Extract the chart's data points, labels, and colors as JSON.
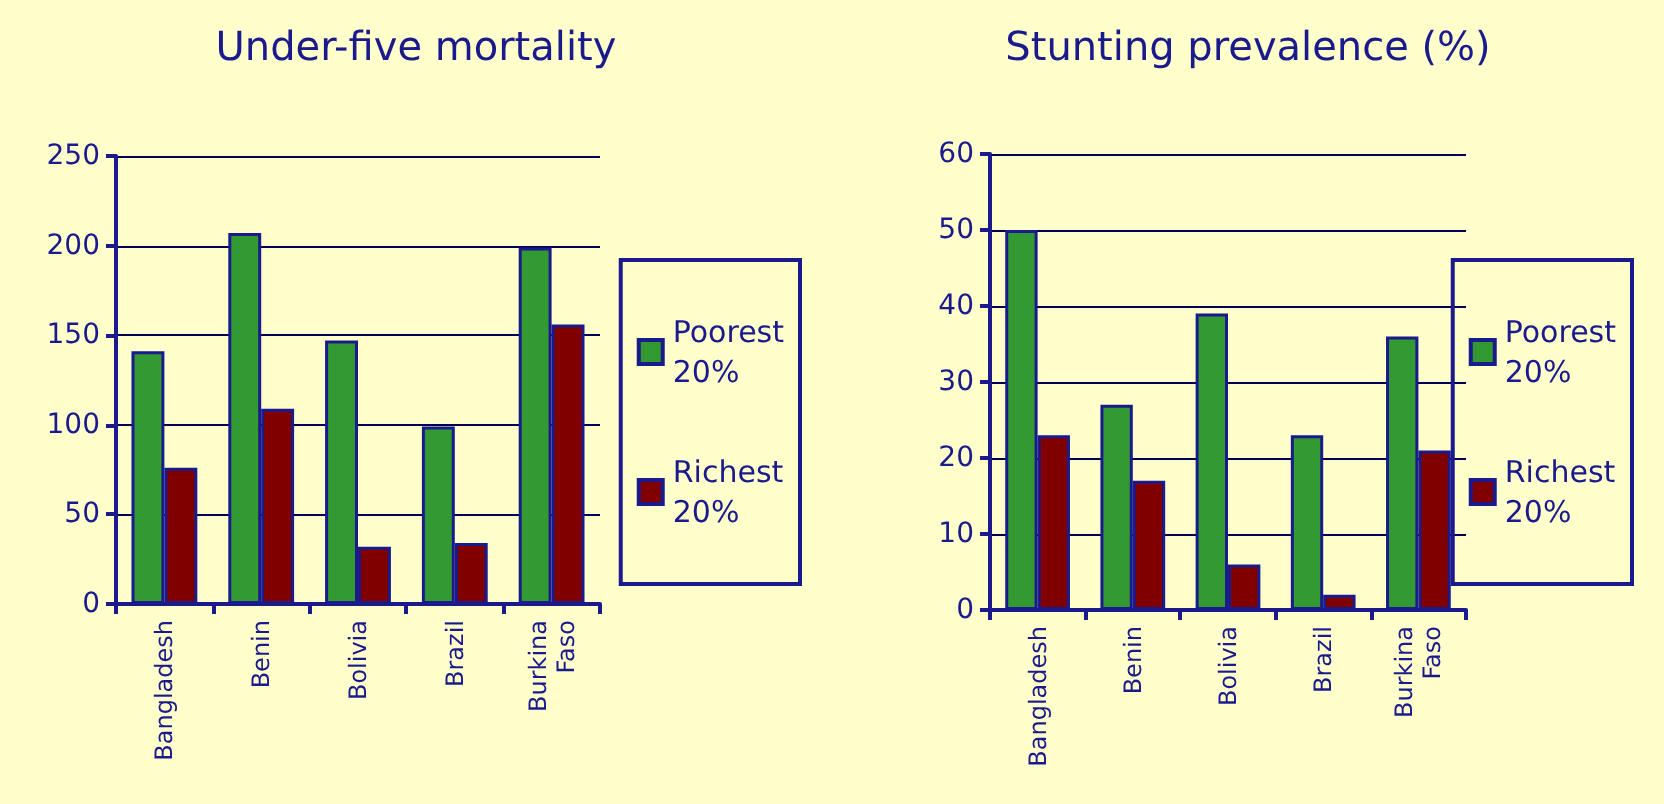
{
  "chart_data": [
    {
      "type": "bar",
      "title": "Under-five mortality",
      "categories": [
        "Bangladesh",
        "Benin",
        "Bolivia",
        "Brazil",
        "Burkina\nFaso"
      ],
      "series": [
        {
          "name": "Poorest\n20%",
          "color": "#339933",
          "values": [
            141,
            207,
            147,
            99,
            199
          ]
        },
        {
          "name": "Richest\n20%",
          "color": "#800000",
          "values": [
            76,
            109,
            32,
            34,
            156
          ]
        }
      ],
      "ylim": [
        0,
        250
      ],
      "yticks": [
        0,
        50,
        100,
        150,
        200,
        250
      ],
      "grid": "y",
      "legend": "right"
    },
    {
      "type": "bar",
      "title": "Stunting prevalence (%)",
      "categories": [
        "Bangladesh",
        "Benin",
        "Bolivia",
        "Brazil",
        "Burkina\nFaso"
      ],
      "series": [
        {
          "name": "Poorest\n20%",
          "color": "#339933",
          "values": [
            50,
            27,
            39,
            23,
            36
          ]
        },
        {
          "name": "Richest\n20%",
          "color": "#800000",
          "values": [
            23,
            17,
            6,
            2,
            21
          ]
        }
      ],
      "ylim": [
        0,
        60
      ],
      "yticks": [
        0,
        10,
        20,
        30,
        40,
        50,
        60
      ],
      "grid": "y",
      "legend": "right"
    }
  ]
}
